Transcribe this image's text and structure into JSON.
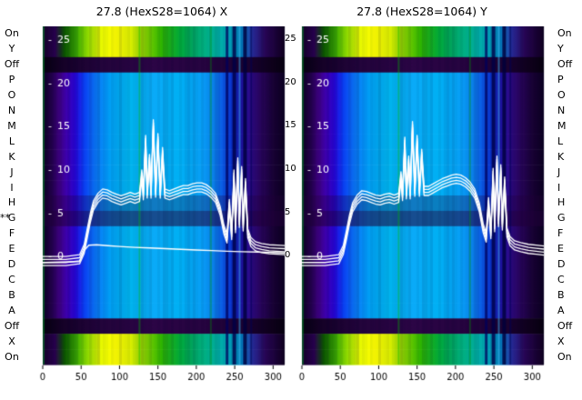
{
  "titles": {
    "left": "27.8 (HexS28=1064) X",
    "right": "27.8 (HexS28=1064) Y"
  },
  "channel_labels": [
    "On",
    "Y",
    "Off",
    "P",
    "O",
    "N",
    "M",
    "L",
    "K",
    "J",
    "I",
    "H",
    "G",
    "F",
    "E",
    "D",
    "C",
    "B",
    "A",
    "Off",
    "X",
    "On"
  ],
  "marker": {
    "text": "**",
    "row": "G",
    "row_index": 12
  },
  "chart_data": [
    {
      "type": "heatmap",
      "title": "27.8 (HexS28=1064) X",
      "x_range": [
        0,
        315
      ],
      "x_ticks": [
        0,
        50,
        100,
        150,
        200,
        250,
        300
      ],
      "y_ticks": [
        25,
        20,
        15,
        10,
        5,
        0
      ],
      "y_view_range": [
        -12.6,
        26.5
      ],
      "rows": [
        "bright",
        "bright",
        "dark",
        "normal",
        "normal",
        "normal",
        "normal",
        "normal",
        "normal",
        "normal",
        "normal",
        "dimlite",
        "dim",
        "normal",
        "normal",
        "normal",
        "normal",
        "normal",
        "normal",
        "dark",
        "bright",
        "bright"
      ],
      "series": [
        {
          "name": "beam-profile-bundle",
          "color": "#ffffff",
          "width": 1.3,
          "bundle_offsets": [
            0,
            0.35,
            -0.35,
            0.7
          ],
          "points": [
            [
              0,
              -0.8
            ],
            [
              30,
              -0.8
            ],
            [
              48,
              -0.6
            ],
            [
              54,
              0.6
            ],
            [
              58,
              2.4
            ],
            [
              62,
              4.2
            ],
            [
              66,
              5.6
            ],
            [
              72,
              6.5
            ],
            [
              78,
              7.0
            ],
            [
              84,
              6.9
            ],
            [
              90,
              6.6
            ],
            [
              96,
              6.4
            ],
            [
              102,
              6.2
            ],
            [
              108,
              6.4
            ],
            [
              114,
              6.6
            ],
            [
              120,
              6.4
            ],
            [
              126,
              6.6
            ],
            [
              129,
              9.2
            ],
            [
              131,
              6.8
            ],
            [
              134,
              13.2
            ],
            [
              136,
              7.0
            ],
            [
              139,
              11.0
            ],
            [
              141,
              7.0
            ],
            [
              144,
              15.0
            ],
            [
              147,
              7.1
            ],
            [
              150,
              13.4
            ],
            [
              153,
              7.0
            ],
            [
              156,
              11.8
            ],
            [
              159,
              7.0
            ],
            [
              165,
              6.8
            ],
            [
              171,
              7.0
            ],
            [
              177,
              7.2
            ],
            [
              183,
              7.4
            ],
            [
              189,
              7.4
            ],
            [
              195,
              7.6
            ],
            [
              201,
              7.7
            ],
            [
              207,
              7.7
            ],
            [
              213,
              7.5
            ],
            [
              219,
              7.1
            ],
            [
              225,
              6.5
            ],
            [
              231,
              5.0
            ],
            [
              236,
              2.8
            ],
            [
              240,
              1.8
            ],
            [
              243,
              5.8
            ],
            [
              246,
              2.2
            ],
            [
              249,
              9.2
            ],
            [
              251,
              3.0
            ],
            [
              254,
              10.6
            ],
            [
              256,
              3.6
            ],
            [
              259,
              9.6
            ],
            [
              261,
              3.2
            ],
            [
              264,
              8.2
            ],
            [
              267,
              2.4
            ],
            [
              271,
              1.4
            ],
            [
              277,
              0.9
            ],
            [
              285,
              0.7
            ],
            [
              295,
              0.55
            ],
            [
              305,
              0.5
            ],
            [
              315,
              0.45
            ]
          ]
        },
        {
          "name": "reference-trace",
          "color": "#ffffff",
          "width": 1.4,
          "points": [
            [
              0,
              -0.8
            ],
            [
              48,
              -0.7
            ],
            [
              54,
              0.6
            ],
            [
              60,
              1.2
            ],
            [
              70,
              1.25
            ],
            [
              85,
              1.15
            ],
            [
              100,
              1.05
            ],
            [
              120,
              0.95
            ],
            [
              140,
              0.88
            ],
            [
              160,
              0.8
            ],
            [
              180,
              0.72
            ],
            [
              200,
              0.65
            ],
            [
              220,
              0.58
            ],
            [
              240,
              0.5
            ],
            [
              260,
              0.45
            ],
            [
              280,
              0.4
            ],
            [
              300,
              0.35
            ],
            [
              315,
              0.3
            ]
          ]
        }
      ]
    },
    {
      "type": "heatmap",
      "title": "27.8 (HexS28=1064) Y",
      "x_range": [
        0,
        315
      ],
      "x_ticks": [
        0,
        50,
        100,
        150,
        200,
        250,
        300
      ],
      "y_ticks": [
        25,
        20,
        15,
        10,
        5,
        0
      ],
      "y_view_range": [
        -12.6,
        26.5
      ],
      "rows": [
        "bright",
        "bright",
        "dark",
        "normal",
        "normal",
        "normal",
        "normal",
        "normal",
        "normal",
        "normal",
        "normal",
        "dimlite",
        "dim",
        "normal",
        "normal",
        "normal",
        "normal",
        "normal",
        "normal",
        "dark",
        "bright",
        "bright"
      ],
      "series": [
        {
          "name": "beam-profile-bundle",
          "color": "#ffffff",
          "width": 1.3,
          "bundle_offsets": [
            0,
            0.35,
            -0.35,
            0.7
          ],
          "points": [
            [
              0,
              -0.8
            ],
            [
              30,
              -0.8
            ],
            [
              48,
              -0.6
            ],
            [
              54,
              0.5
            ],
            [
              58,
              2.2
            ],
            [
              62,
              4.0
            ],
            [
              66,
              5.4
            ],
            [
              72,
              6.3
            ],
            [
              78,
              6.8
            ],
            [
              84,
              6.7
            ],
            [
              90,
              6.5
            ],
            [
              96,
              6.3
            ],
            [
              102,
              6.2
            ],
            [
              108,
              6.4
            ],
            [
              114,
              6.5
            ],
            [
              120,
              6.3
            ],
            [
              126,
              6.5
            ],
            [
              129,
              9.0
            ],
            [
              131,
              6.7
            ],
            [
              134,
              13.0
            ],
            [
              136,
              6.9
            ],
            [
              139,
              10.8
            ],
            [
              141,
              6.9
            ],
            [
              144,
              14.8
            ],
            [
              147,
              7.2
            ],
            [
              150,
              13.2
            ],
            [
              153,
              7.2
            ],
            [
              156,
              11.6
            ],
            [
              159,
              7.3
            ],
            [
              165,
              7.3
            ],
            [
              171,
              7.6
            ],
            [
              177,
              7.9
            ],
            [
              183,
              8.2
            ],
            [
              189,
              8.4
            ],
            [
              195,
              8.6
            ],
            [
              201,
              8.7
            ],
            [
              207,
              8.6
            ],
            [
              213,
              8.3
            ],
            [
              219,
              7.8
            ],
            [
              225,
              7.0
            ],
            [
              231,
              5.4
            ],
            [
              236,
              3.0
            ],
            [
              240,
              1.9
            ],
            [
              243,
              6.0
            ],
            [
              246,
              2.3
            ],
            [
              249,
              9.4
            ],
            [
              251,
              3.1
            ],
            [
              254,
              10.8
            ],
            [
              256,
              3.7
            ],
            [
              259,
              9.8
            ],
            [
              261,
              3.3
            ],
            [
              264,
              8.4
            ],
            [
              267,
              2.5
            ],
            [
              271,
              1.5
            ],
            [
              277,
              1.0
            ],
            [
              285,
              0.8
            ],
            [
              295,
              0.6
            ],
            [
              305,
              0.5
            ],
            [
              315,
              0.4
            ]
          ]
        }
      ]
    }
  ],
  "style": {
    "background": "#ffffff",
    "trace_color": "#ffffff",
    "axis_color": "#000000",
    "dim_alpha": 0.55,
    "dimlite_alpha": 0.28,
    "gradients": {
      "normal": [
        [
          0,
          "#0d0022"
        ],
        [
          0.035,
          "#23004a"
        ],
        [
          0.07,
          "#3c0080"
        ],
        [
          0.1,
          "#3d00b0"
        ],
        [
          0.135,
          "#2806de"
        ],
        [
          0.17,
          "#0a3cf0"
        ],
        [
          0.22,
          "#0a78f8"
        ],
        [
          0.28,
          "#00a0f4"
        ],
        [
          0.36,
          "#00b4ee"
        ],
        [
          0.46,
          "#0aaaf8"
        ],
        [
          0.56,
          "#00b0f4"
        ],
        [
          0.64,
          "#06a4f6"
        ],
        [
          0.7,
          "#0a8af0"
        ],
        [
          0.745,
          "#0a58e4"
        ],
        [
          0.78,
          "#0a34ce"
        ],
        [
          0.82,
          "#1c12a6"
        ],
        [
          0.86,
          "#2e0a86"
        ],
        [
          0.9,
          "#2a055e"
        ],
        [
          0.95,
          "#190236"
        ],
        [
          1,
          "#0c0020"
        ]
      ],
      "bright": [
        [
          0,
          "#150028"
        ],
        [
          0.05,
          "#2a0050"
        ],
        [
          0.09,
          "#0a5200"
        ],
        [
          0.14,
          "#3aaa00"
        ],
        [
          0.19,
          "#96dc00"
        ],
        [
          0.24,
          "#e6f800"
        ],
        [
          0.3,
          "#fdfd00"
        ],
        [
          0.36,
          "#def000"
        ],
        [
          0.42,
          "#8cd400"
        ],
        [
          0.49,
          "#2eb400"
        ],
        [
          0.57,
          "#00a83c"
        ],
        [
          0.64,
          "#00aa6e"
        ],
        [
          0.7,
          "#00b496"
        ],
        [
          0.76,
          "#00a8b4"
        ],
        [
          0.82,
          "#0080c0"
        ],
        [
          0.87,
          "#2a2a9a"
        ],
        [
          0.92,
          "#280656"
        ],
        [
          1,
          "#10001e"
        ]
      ],
      "dark": [
        [
          0,
          "#070010"
        ],
        [
          0.08,
          "#150127"
        ],
        [
          0.22,
          "#22043a"
        ],
        [
          0.45,
          "#2c0546"
        ],
        [
          0.65,
          "#270441"
        ],
        [
          0.85,
          "#1a0230"
        ],
        [
          1,
          "#08000f"
        ]
      ]
    },
    "stripes": [
      {
        "f": 0.004,
        "w": 2,
        "color": "rgba(0,150,40,0.5)"
      },
      {
        "f": 0.4,
        "w": 2,
        "color": "rgba(0,170,0,0.4)"
      },
      {
        "f": 0.695,
        "w": 2,
        "color": "rgba(0,170,0,0.3)"
      },
      {
        "f": 0.762,
        "w": 3,
        "color": "rgba(0,0,90,0.75)"
      },
      {
        "f": 0.792,
        "w": 4,
        "color": "rgba(0,0,70,0.8)"
      },
      {
        "f": 0.814,
        "w": 2,
        "color": "rgba(70,200,255,0.45)"
      },
      {
        "f": 0.836,
        "w": 4,
        "color": "rgba(0,0,60,0.8)"
      },
      {
        "f": 0.862,
        "w": 2,
        "color": "rgba(0,0,80,0.55)"
      }
    ]
  }
}
